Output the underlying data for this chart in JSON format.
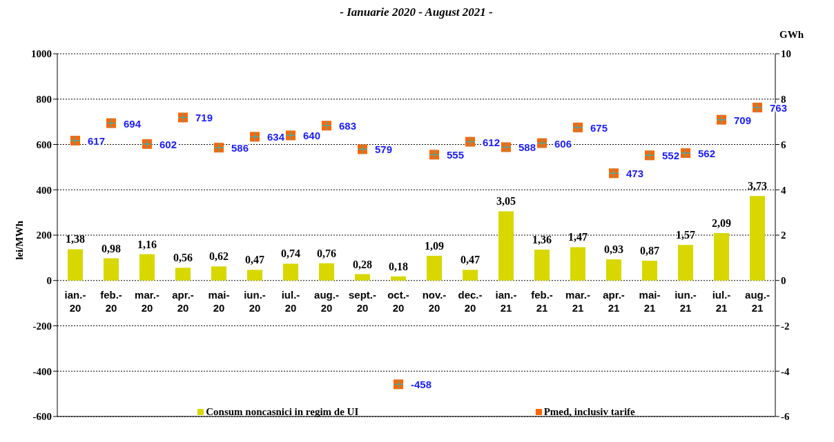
{
  "chart_data": {
    "type": "bar",
    "title": "- Ianuarie 2020 - August 2021 -",
    "ylabel": "lei/MWh",
    "y2label": "GWh",
    "categories": [
      "ian.-20",
      "feb.-20",
      "mar.-20",
      "apr.-20",
      "mai-20",
      "iun.-20",
      "iul.-20",
      "aug.-20",
      "sept.-20",
      "oct.-20",
      "nov.-20",
      "dec.-20",
      "ian.-21",
      "feb.-21",
      "mar.-21",
      "apr.-21",
      "mai-21",
      "iun.-21",
      "iul.-21",
      "aug.-21"
    ],
    "series": [
      {
        "name": "Consum noncasnici in regim de UI",
        "axis": "y2",
        "color": "#d8d800",
        "values": [
          1.38,
          0.98,
          1.16,
          0.56,
          0.62,
          0.47,
          0.74,
          0.76,
          0.28,
          0.18,
          1.09,
          0.47,
          3.05,
          1.36,
          1.47,
          0.93,
          0.87,
          1.57,
          2.09,
          3.73
        ],
        "value_labels": [
          "1,38",
          "0,98",
          "1,16",
          "0,56",
          "0,62",
          "0,47",
          "0,74",
          "0,76",
          "0,28",
          "0,18",
          "1,09",
          "0,47",
          "3,05",
          "1,36",
          "1,47",
          "0,93",
          "0,87",
          "1,57",
          "2,09",
          "3,73"
        ]
      },
      {
        "name": "Pmed, inclusiv tarife",
        "type": "scatter",
        "axis": "y",
        "color": "#ff6600",
        "marker": "square",
        "values": [
          617,
          694,
          602,
          719,
          586,
          634,
          640,
          683,
          579,
          -458,
          555,
          612,
          588,
          606,
          675,
          473,
          552,
          562,
          709,
          763
        ],
        "value_labels": [
          "617",
          "694",
          "602",
          "719",
          "586",
          "634",
          "640",
          "683",
          "579",
          "-458",
          "555",
          "612",
          "588",
          "606",
          "675",
          "473",
          "552",
          "562",
          "709",
          "763"
        ]
      }
    ],
    "ylim": [
      -600,
      1000
    ],
    "yticks": [
      -600,
      -400,
      -200,
      0,
      200,
      400,
      600,
      800,
      1000
    ],
    "y2lim": [
      -6,
      10
    ],
    "y2ticks": [
      -6,
      -4,
      -2,
      0,
      2,
      4,
      6,
      8,
      10
    ],
    "grid": "y",
    "legend": "bottom"
  }
}
